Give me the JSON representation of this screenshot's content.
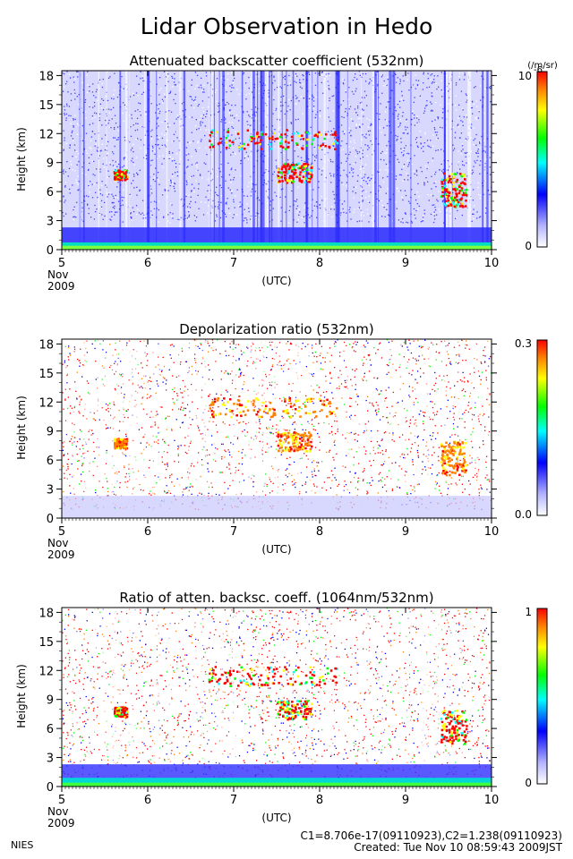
{
  "title": "Lidar Observation in Hedo",
  "footer": {
    "left": "NIES",
    "calibration": "C1=8.706e-17(09110923),C2=1.238(09110923)",
    "created": "Created: Tue Nov 10 08:59:43 2009JST"
  },
  "colors": {
    "background_scale": [
      "#ffffff",
      "#b4b4ff",
      "#0000ff",
      "#00ffff",
      "#00ff00",
      "#ffff00",
      "#ff8000",
      "#ff0000"
    ],
    "frame": "#000000"
  },
  "chart_data": [
    {
      "type": "heatmap",
      "title": "Attenuated backscatter coefficient (532nm)",
      "ylabel": "Height (km)",
      "xlabel": "(UTC)",
      "x_ticks": [
        "5",
        "6",
        "7",
        "8",
        "9",
        "10"
      ],
      "x_sub": [
        "Nov",
        "2009"
      ],
      "xlim": [
        5,
        10
      ],
      "y_ticks": [
        "0",
        "3",
        "6",
        "9",
        "12",
        "15",
        "18"
      ],
      "ylim": [
        0,
        18.5
      ],
      "colorbar": {
        "max_label": "10",
        "max_exp": "-6",
        "min_label": "0",
        "unit": "(/m/sr)"
      },
      "features": {
        "surface_layer_top_km": 1.5,
        "boundary_layer_top_km": 2.3,
        "clouds": [
          {
            "x": [
              6.7,
              8.2
            ],
            "y": [
              10.5,
              12.5
            ]
          },
          {
            "x": [
              7.5,
              7.9
            ],
            "y": [
              7.0,
              9.0
            ]
          },
          {
            "x": [
              9.4,
              9.7
            ],
            "y": [
              4.5,
              8.0
            ]
          },
          {
            "x": [
              5.6,
              5.75
            ],
            "y": [
              7.3,
              8.3
            ]
          }
        ]
      }
    },
    {
      "type": "heatmap",
      "title": "Depolarization ratio (532nm)",
      "ylabel": "Height (km)",
      "xlabel": "(UTC)",
      "x_ticks": [
        "5",
        "6",
        "7",
        "8",
        "9",
        "10"
      ],
      "x_sub": [
        "Nov",
        "2009"
      ],
      "xlim": [
        5,
        10
      ],
      "y_ticks": [
        "0",
        "3",
        "6",
        "9",
        "12",
        "15",
        "18"
      ],
      "ylim": [
        0,
        18.5
      ],
      "colorbar": {
        "max_label": "0.3",
        "min_label": "0.0"
      }
    },
    {
      "type": "heatmap",
      "title": "Ratio of atten. backsc. coeff. (1064nm/532nm)",
      "ylabel": "Height (km)",
      "xlabel": "(UTC)",
      "x_ticks": [
        "5",
        "6",
        "7",
        "8",
        "9",
        "10"
      ],
      "x_sub": [
        "Nov",
        "2009"
      ],
      "xlim": [
        5,
        10
      ],
      "y_ticks": [
        "0",
        "3",
        "6",
        "9",
        "12",
        "15",
        "18"
      ],
      "ylim": [
        0,
        18.5
      ],
      "colorbar": {
        "max_label": "1",
        "min_label": "0"
      }
    }
  ]
}
